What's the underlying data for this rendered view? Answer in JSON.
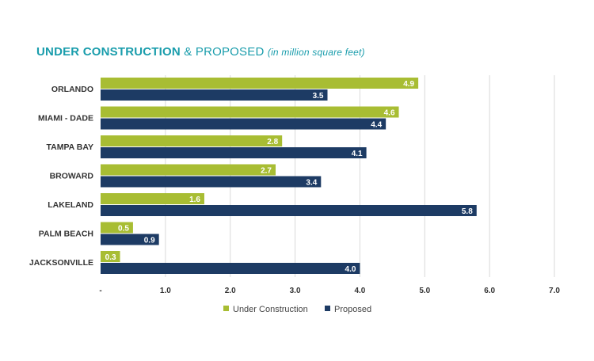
{
  "title": {
    "bold": "UNDER CONSTRUCTION",
    "light": " & PROPOSED",
    "sub": "(in million square feet)"
  },
  "colors": {
    "under_construction": "#a8bd33",
    "proposed": "#1d3b64",
    "grid": "#d9d9d9",
    "title": "#1a9dac"
  },
  "chart_data": {
    "type": "bar",
    "orientation": "horizontal",
    "categories": [
      "ORLANDO",
      "MIAMI - DADE",
      "TAMPA BAY",
      "BROWARD",
      "LAKELAND",
      "PALM BEACH",
      "JACKSONVILLE"
    ],
    "series": [
      {
        "name": "Under Construction",
        "values": [
          4.9,
          4.6,
          2.8,
          2.7,
          1.6,
          0.5,
          0.3
        ],
        "labels": [
          "4.9",
          "4.6",
          "2.8",
          "2.7",
          "1.6",
          "0.5",
          "0.3"
        ]
      },
      {
        "name": "Proposed",
        "values": [
          3.5,
          4.4,
          4.1,
          3.4,
          5.8,
          0.9,
          4.0
        ],
        "labels": [
          "3.5",
          "4.4",
          "4.1",
          "3.4",
          "5.8",
          "0.9",
          "4.0"
        ]
      }
    ],
    "xlim": [
      0,
      7
    ],
    "xticks": [
      0,
      1,
      2,
      3,
      4,
      5,
      6,
      7
    ],
    "xtick_labels": [
      "-",
      "1.0",
      "2.0",
      "3.0",
      "4.0",
      "5.0",
      "6.0",
      "7.0"
    ],
    "grid": true,
    "legend_position": "bottom"
  }
}
